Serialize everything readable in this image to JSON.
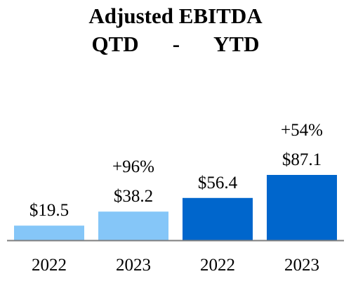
{
  "title": {
    "line1": "Adjusted EBITDA",
    "line2_left": "QTD",
    "line2_sep": "-",
    "line2_right": "YTD"
  },
  "chart_data": {
    "type": "bar",
    "title": "Adjusted EBITDA QTD - YTD",
    "categories": [
      "2022",
      "2023",
      "2022",
      "2023"
    ],
    "values": [
      19.5,
      38.2,
      56.4,
      87.1
    ],
    "data_labels": [
      "$19.5",
      "$38.2",
      "$56.4",
      "$87.1"
    ],
    "annotations": [
      {
        "bar": 1,
        "text": "+96%"
      },
      {
        "bar": 3,
        "text": "+54%"
      }
    ],
    "groups": [
      {
        "name": "QTD",
        "bars": [
          0,
          1
        ],
        "color": "#85c6f8"
      },
      {
        "name": "YTD",
        "bars": [
          2,
          3
        ],
        "color": "#0066cc"
      }
    ],
    "ylim": [
      0,
      87.1
    ],
    "grid": false,
    "axis_color": "#7f7f7f"
  }
}
